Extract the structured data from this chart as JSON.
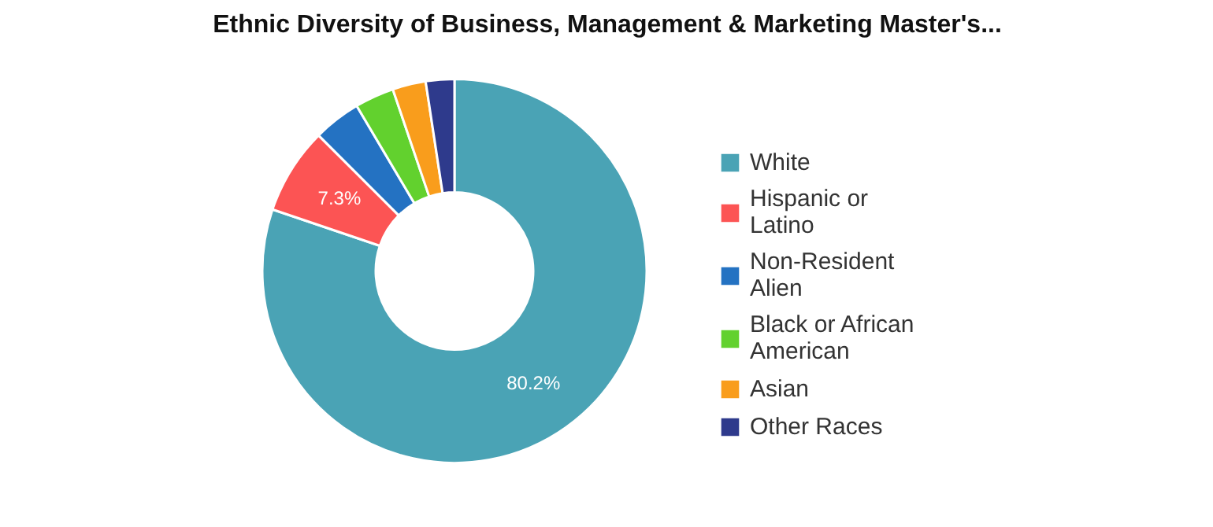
{
  "chart_data": {
    "type": "donut",
    "title": "Ethnic Diversity of Business, Management & Marketing Master's...",
    "categories": [
      "White",
      "Hispanic or Latino",
      "Non-Resident Alien",
      "Black or African American",
      "Asian",
      "Other Races"
    ],
    "values": [
      80.2,
      7.3,
      4.0,
      3.3,
      2.8,
      2.4
    ],
    "colors": [
      "#4aa3b5",
      "#fc5454",
      "#2472c2",
      "#62d12e",
      "#f99d1c",
      "#2e3a8c"
    ],
    "value_labels": [
      "80.2%",
      "7.3%",
      null,
      null,
      null,
      null
    ],
    "legend": "right"
  }
}
